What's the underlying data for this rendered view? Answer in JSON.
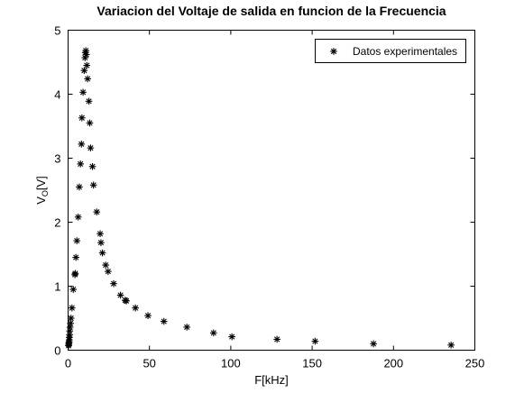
{
  "chart_data": {
    "type": "scatter",
    "title": "Variacion del Voltaje de salida en funcion de la Frecuencia",
    "xlabel": "F[kHz]",
    "ylabel": "V",
    "ylabel_subscript": "O",
    "ylabel_suffix": "[V]",
    "xlim": [
      0,
      250
    ],
    "ylim": [
      0,
      5
    ],
    "xticks": [
      0,
      50,
      100,
      150,
      200,
      250
    ],
    "yticks": [
      0,
      1,
      2,
      3,
      4,
      5
    ],
    "grid": false,
    "legend_position": "top-right",
    "marker": "asterisk",
    "color": "#000000",
    "series": [
      {
        "name": "Datos experimentales",
        "points": [
          [
            0.3,
            0.07
          ],
          [
            0.4,
            0.09
          ],
          [
            0.5,
            0.11
          ],
          [
            0.6,
            0.13
          ],
          [
            0.7,
            0.16
          ],
          [
            0.8,
            0.2
          ],
          [
            0.9,
            0.24
          ],
          [
            1.0,
            0.3
          ],
          [
            1.2,
            0.36
          ],
          [
            1.5,
            0.42
          ],
          [
            1.8,
            0.5
          ],
          [
            2.4,
            0.66
          ],
          [
            3.2,
            0.95
          ],
          [
            4.2,
            1.18
          ],
          [
            4.4,
            1.2
          ],
          [
            4.8,
            1.45
          ],
          [
            5.4,
            1.71
          ],
          [
            6.2,
            2.08
          ],
          [
            6.9,
            2.55
          ],
          [
            7.6,
            2.91
          ],
          [
            8.2,
            3.22
          ],
          [
            8.5,
            3.63
          ],
          [
            9.2,
            4.03
          ],
          [
            9.9,
            4.37
          ],
          [
            10.4,
            4.57
          ],
          [
            10.6,
            4.65
          ],
          [
            10.9,
            4.68
          ],
          [
            11.2,
            4.62
          ],
          [
            11.5,
            4.45
          ],
          [
            12.0,
            4.24
          ],
          [
            12.8,
            3.89
          ],
          [
            13.3,
            3.55
          ],
          [
            13.8,
            3.16
          ],
          [
            15.0,
            2.87
          ],
          [
            15.6,
            2.58
          ],
          [
            17.6,
            2.16
          ],
          [
            19.7,
            1.82
          ],
          [
            20.2,
            1.68
          ],
          [
            21.1,
            1.52
          ],
          [
            23.1,
            1.33
          ],
          [
            24.6,
            1.23
          ],
          [
            28.0,
            1.04
          ],
          [
            32.2,
            0.86
          ],
          [
            35.1,
            0.78
          ],
          [
            35.8,
            0.77
          ],
          [
            41.4,
            0.66
          ],
          [
            49.1,
            0.54
          ],
          [
            58.9,
            0.45
          ],
          [
            73.0,
            0.36
          ],
          [
            89.4,
            0.27
          ],
          [
            100.7,
            0.21
          ],
          [
            128.4,
            0.17
          ],
          [
            151.8,
            0.14
          ],
          [
            187.7,
            0.1
          ],
          [
            235.4,
            0.08
          ]
        ]
      }
    ]
  }
}
